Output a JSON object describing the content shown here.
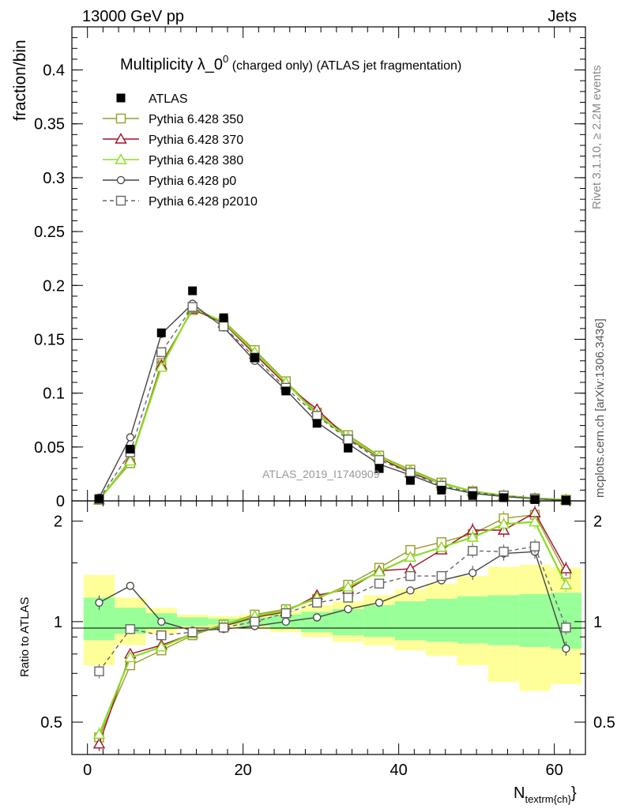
{
  "header": {
    "left": "13000 GeV pp",
    "right": "Jets"
  },
  "side": {
    "rivet": "Rivet 3.1.10, ≥ 2.2M events",
    "mcplots": "mcplots.cern.ch [arXiv:1306.3436]"
  },
  "chart_data": {
    "type": "line",
    "title_main": "Multiplicity λ_0",
    "title_sup": "0",
    "title_tail": " (charged only) (ATLAS jet fragmentation)",
    "watermark": "ATLAS_2019_I1740909",
    "ylabel": "fraction/bin",
    "ratio_ylabel": "Ratio to ATLAS",
    "xlabel_main": "N",
    "xlabel_sub": "textrm{ch}",
    "xlabel_end": "}",
    "xlim": [
      -2,
      64
    ],
    "ylim": [
      0,
      0.44
    ],
    "ratio_ylim": [
      0.4,
      2.3
    ],
    "x_ticks": [
      0,
      20,
      40,
      60
    ],
    "y_ticks": [
      0,
      0.05,
      0.1,
      0.15,
      0.2,
      0.25,
      0.3,
      0.35,
      0.4
    ],
    "y_tick_labels": [
      "0",
      "0.05",
      "0.1",
      "0.15",
      "0.2",
      "0.25",
      "0.3",
      "0.35",
      "0.4"
    ],
    "ratio_ticks": [
      0.5,
      1,
      2
    ],
    "ratio_tick_labels": [
      "0.5",
      "1",
      "2"
    ],
    "bin_edges": [
      -0.5,
      3.5,
      7.5,
      11.5,
      15.5,
      19.5,
      23.5,
      27.5,
      31.5,
      35.5,
      39.5,
      43.5,
      47.5,
      51.5,
      55.5,
      59.5,
      63.5
    ],
    "x": [
      1.5,
      5.5,
      9.5,
      13.5,
      17.5,
      21.5,
      25.5,
      29.5,
      33.5,
      37.5,
      41.5,
      45.5,
      49.5,
      53.5,
      57.5,
      61.5
    ],
    "band_green": [
      [
        0.88,
        1.18
      ],
      [
        0.92,
        1.1
      ],
      [
        0.95,
        1.06
      ],
      [
        0.97,
        1.03
      ],
      [
        0.98,
        1.02
      ],
      [
        0.97,
        1.03
      ],
      [
        0.95,
        1.05
      ],
      [
        0.93,
        1.07
      ],
      [
        0.91,
        1.09
      ],
      [
        0.9,
        1.12
      ],
      [
        0.88,
        1.15
      ],
      [
        0.87,
        1.17
      ],
      [
        0.86,
        1.19
      ],
      [
        0.85,
        1.2
      ],
      [
        0.84,
        1.21
      ],
      [
        0.83,
        1.22
      ]
    ],
    "band_yellow": [
      [
        0.74,
        1.38
      ],
      [
        0.85,
        1.18
      ],
      [
        0.92,
        1.1
      ],
      [
        0.95,
        1.05
      ],
      [
        0.96,
        1.04
      ],
      [
        0.95,
        1.05
      ],
      [
        0.93,
        1.08
      ],
      [
        0.9,
        1.12
      ],
      [
        0.87,
        1.15
      ],
      [
        0.85,
        1.2
      ],
      [
        0.82,
        1.25
      ],
      [
        0.79,
        1.3
      ],
      [
        0.74,
        1.37
      ],
      [
        0.66,
        1.46
      ],
      [
        0.62,
        1.48
      ],
      [
        0.65,
        1.45
      ]
    ],
    "series": [
      {
        "name": "ATLAS",
        "color": "#000000",
        "marker": "filled-square",
        "line": "none",
        "values": [
          0.002,
          0.048,
          0.156,
          0.195,
          0.17,
          0.133,
          0.102,
          0.072,
          0.049,
          0.03,
          0.019,
          0.01,
          0.005,
          0.003,
          0.0012,
          0.0005
        ]
      },
      {
        "name": "Pythia 6.428 350",
        "color": "#9b9b2b",
        "marker": "open-square",
        "line": "solid",
        "values": [
          0.001,
          0.035,
          0.128,
          0.177,
          0.167,
          0.14,
          0.111,
          0.082,
          0.061,
          0.042,
          0.029,
          0.017,
          0.009,
          0.005,
          0.0024,
          0.0011
        ],
        "ratio": [
          0.45,
          0.74,
          0.82,
          0.91,
          0.98,
          1.05,
          1.09,
          1.17,
          1.29,
          1.45,
          1.64,
          1.73,
          1.83,
          2.04,
          2.09,
          1.39
        ]
      },
      {
        "name": "Pythia 6.428 370",
        "color": "#a0102a",
        "marker": "open-triangle",
        "line": "solid",
        "values": [
          0.001,
          0.038,
          0.126,
          0.178,
          0.165,
          0.136,
          0.108,
          0.085,
          0.058,
          0.04,
          0.026,
          0.016,
          0.009,
          0.005,
          0.0025,
          0.0012
        ],
        "ratio": [
          0.43,
          0.8,
          0.85,
          0.92,
          0.97,
          1.03,
          1.07,
          1.2,
          1.25,
          1.42,
          1.44,
          1.64,
          1.88,
          1.88,
          2.12,
          1.44
        ]
      },
      {
        "name": "Pythia 6.428 380",
        "color": "#88dd22",
        "marker": "open-triangle",
        "line": "solid",
        "values": [
          0.001,
          0.037,
          0.124,
          0.179,
          0.166,
          0.138,
          0.11,
          0.08,
          0.059,
          0.041,
          0.028,
          0.016,
          0.009,
          0.005,
          0.0024,
          0.0011
        ],
        "ratio": [
          0.46,
          0.78,
          0.84,
          0.92,
          0.98,
          1.04,
          1.08,
          1.18,
          1.27,
          1.41,
          1.56,
          1.67,
          1.79,
          1.96,
          1.99,
          1.29
        ]
      },
      {
        "name": "Pythia 6.428 p0",
        "color": "#444444",
        "marker": "open-circle",
        "line": "solid",
        "values": [
          0.003,
          0.059,
          0.155,
          0.183,
          0.161,
          0.13,
          0.103,
          0.073,
          0.053,
          0.034,
          0.024,
          0.013,
          0.007,
          0.004,
          0.002,
          0.0004
        ],
        "ratio": [
          1.14,
          1.28,
          1.0,
          0.94,
          0.95,
          0.97,
          1.0,
          1.03,
          1.09,
          1.14,
          1.24,
          1.33,
          1.4,
          1.6,
          1.62,
          0.83
        ]
      },
      {
        "name": "Pythia 6.428 p2010",
        "color": "#666666",
        "marker": "open-square",
        "line": "dashed",
        "values": [
          0.0015,
          0.045,
          0.138,
          0.18,
          0.162,
          0.133,
          0.105,
          0.079,
          0.057,
          0.038,
          0.026,
          0.014,
          0.008,
          0.005,
          0.002,
          0.0005
        ],
        "ratio": [
          0.71,
          0.95,
          0.91,
          0.93,
          0.96,
          1.0,
          1.06,
          1.14,
          1.18,
          1.3,
          1.37,
          1.37,
          1.63,
          1.62,
          1.68,
          0.96
        ]
      }
    ]
  }
}
